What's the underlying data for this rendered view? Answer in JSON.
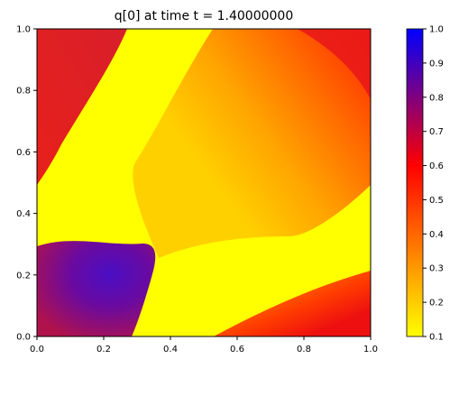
{
  "chart_data": {
    "type": "heatmap",
    "title": "q[0] at time t =     1.40000000",
    "xlabel": "",
    "ylabel": "",
    "xlim": [
      0.0,
      1.0
    ],
    "ylim": [
      0.0,
      1.0
    ],
    "x_ticks": [
      "0.0",
      "0.2",
      "0.4",
      "0.6",
      "0.8",
      "1.0"
    ],
    "y_ticks": [
      "0.0",
      "0.2",
      "0.4",
      "0.6",
      "0.8",
      "1.0"
    ],
    "colorbar": {
      "range": [
        0.1,
        1.0
      ],
      "ticks": [
        "0.1",
        "0.2",
        "0.3",
        "0.4",
        "0.5",
        "0.6",
        "0.7",
        "0.8",
        "0.9",
        "1.0"
      ],
      "colors": [
        "#ffff00",
        "#ff0000",
        "#0000ff"
      ]
    },
    "regions": [
      {
        "name": "top-left red band",
        "value": 0.6
      },
      {
        "name": "yellow diagonal band",
        "value": 0.1
      },
      {
        "name": "central orange gradient",
        "value": 0.35
      },
      {
        "name": "top-right red corner",
        "value": 0.6
      },
      {
        "name": "bottom-left purple lobe",
        "value": 0.8
      },
      {
        "name": "bottom-right red band",
        "value": 0.6
      }
    ],
    "grid": false
  }
}
